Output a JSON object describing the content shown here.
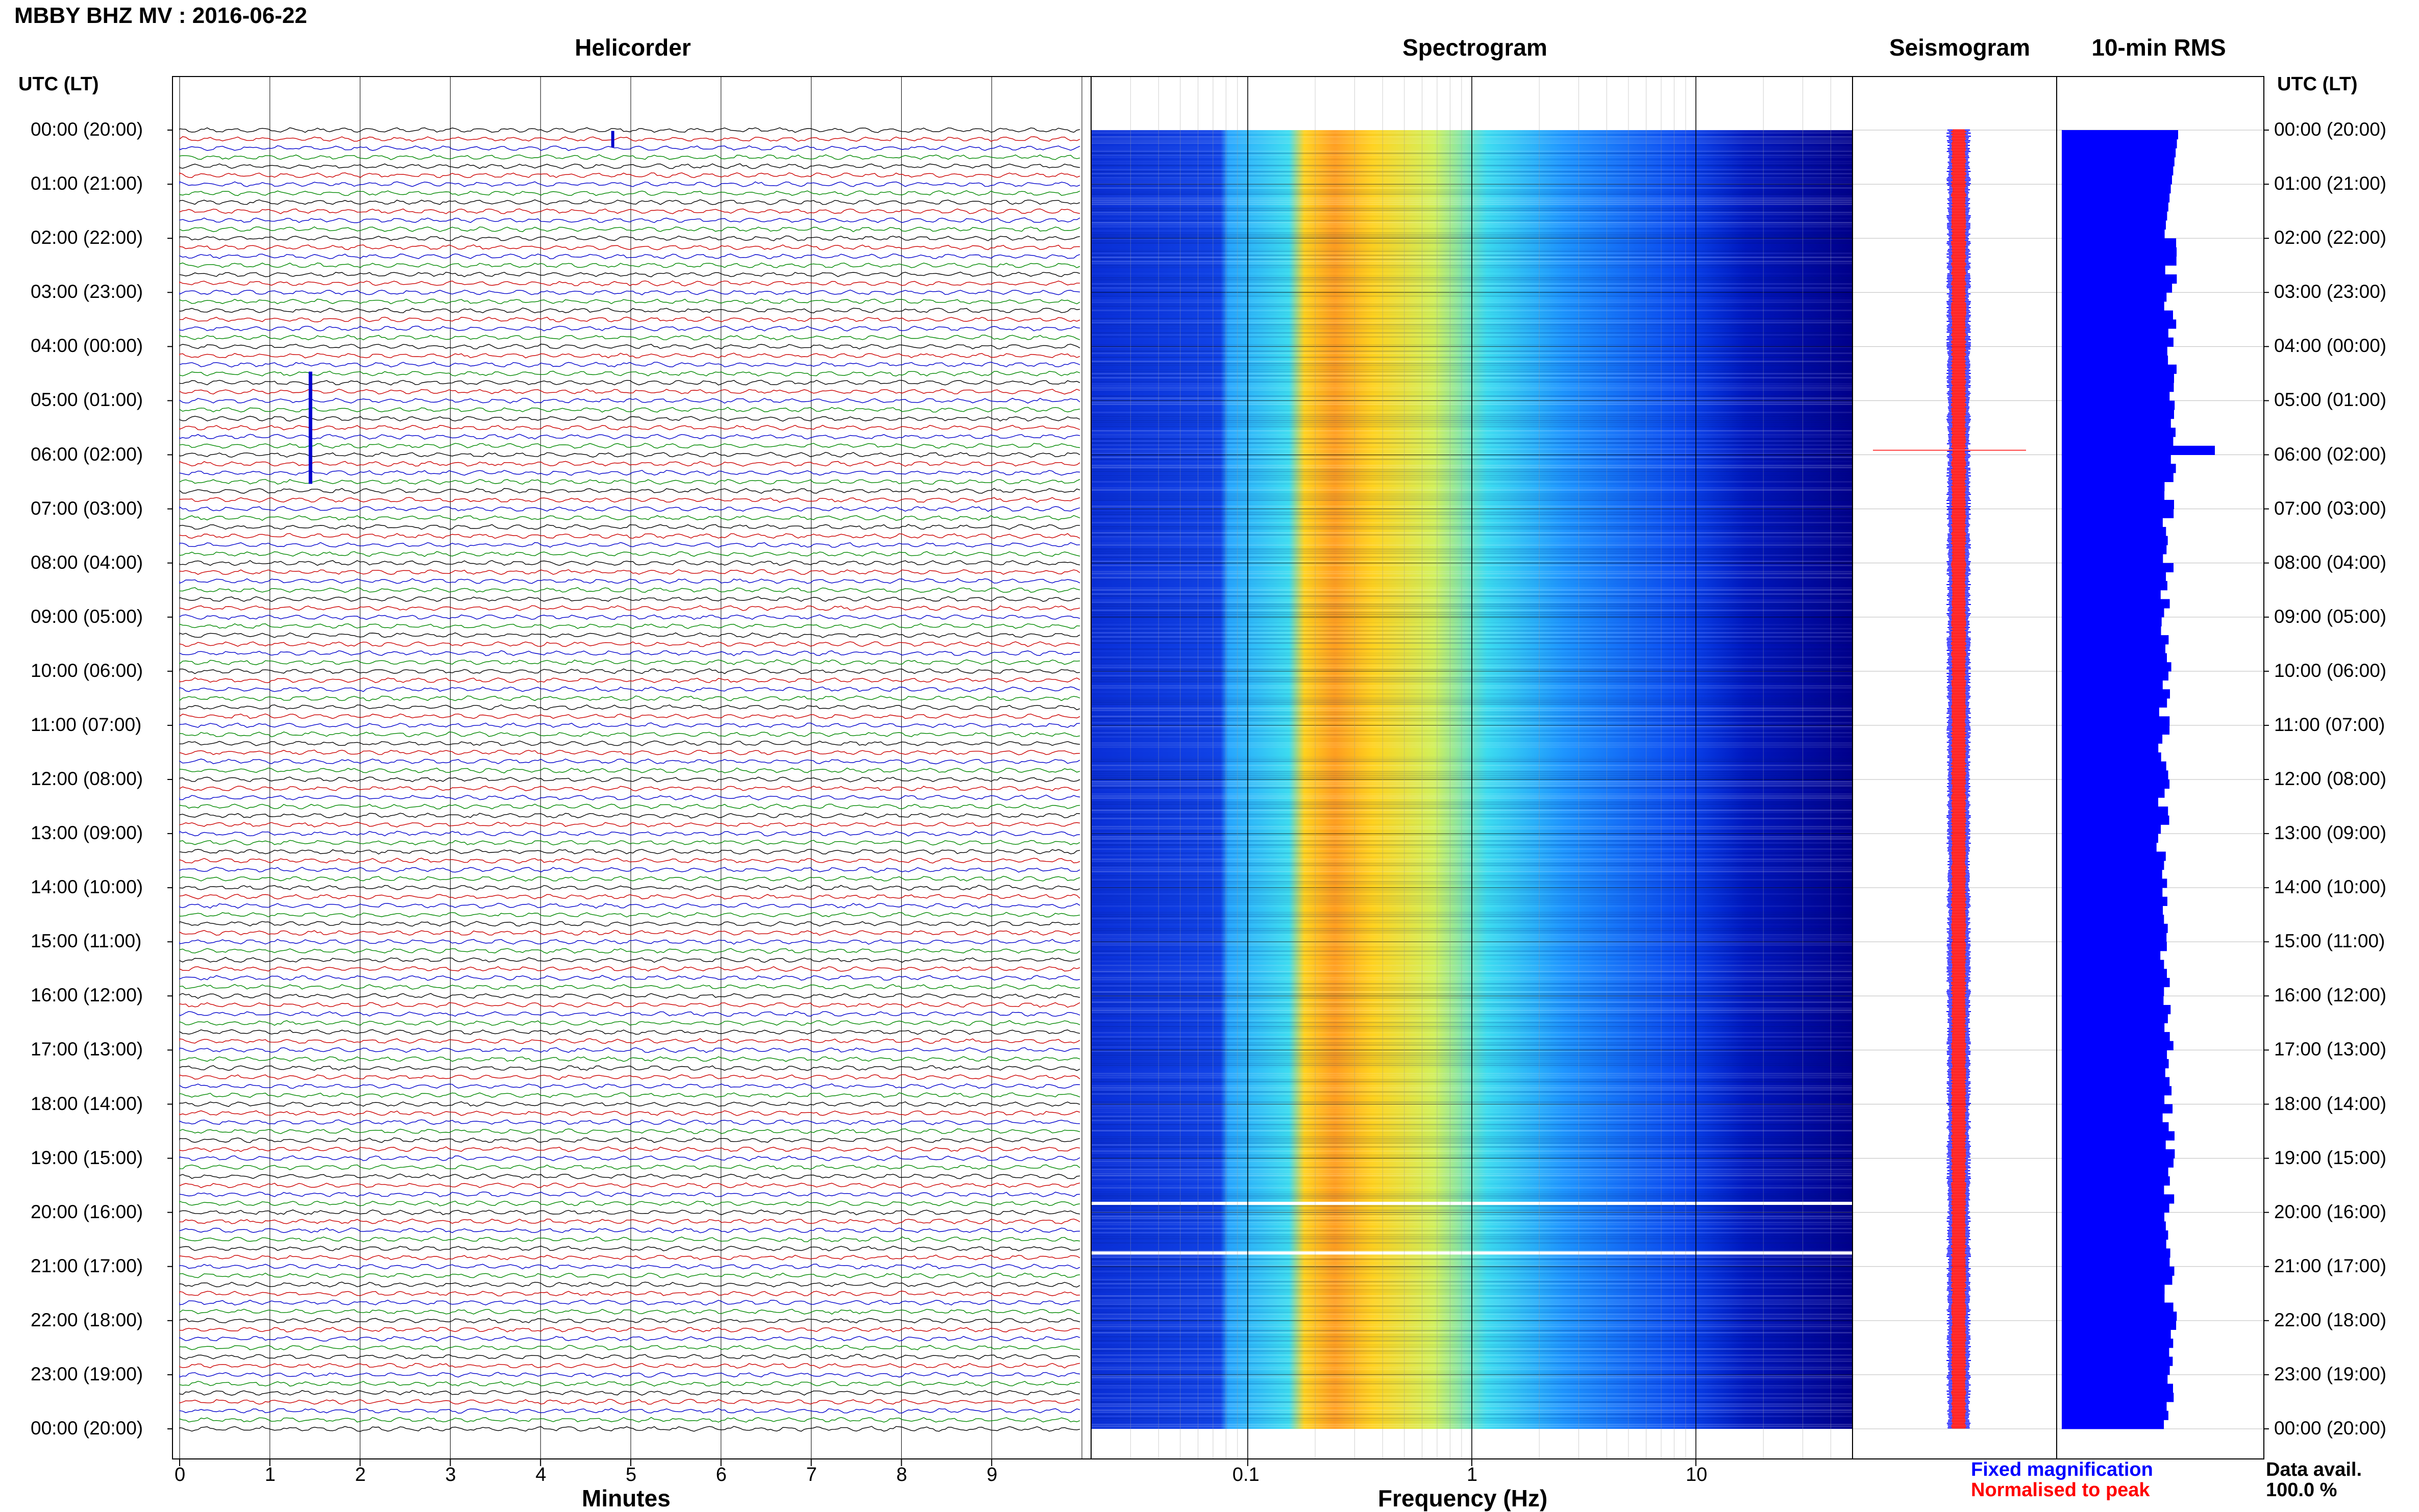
{
  "header": {
    "title": "MBBY BHZ MV : 2016-06-22",
    "utc_label": "UTC (LT)"
  },
  "panels": {
    "helicorder": "Helicorder",
    "spectrogram": "Spectrogram",
    "seismogram": "Seismogram",
    "rms": "10-min RMS"
  },
  "time_labels": [
    "00:00 (20:00)",
    "01:00 (21:00)",
    "02:00 (22:00)",
    "03:00 (23:00)",
    "04:00 (00:00)",
    "05:00 (01:00)",
    "06:00 (02:00)",
    "07:00 (03:00)",
    "08:00 (04:00)",
    "09:00 (05:00)",
    "10:00 (06:00)",
    "11:00 (07:00)",
    "12:00 (08:00)",
    "13:00 (09:00)",
    "14:00 (10:00)",
    "15:00 (11:00)",
    "16:00 (12:00)",
    "17:00 (13:00)",
    "18:00 (14:00)",
    "19:00 (15:00)",
    "20:00 (16:00)",
    "21:00 (17:00)",
    "22:00 (18:00)",
    "23:00 (19:00)",
    "00:00 (20:00)"
  ],
  "helicorder_axis": {
    "xlabel": "Minutes",
    "ticks": [
      "0",
      "1",
      "2",
      "3",
      "4",
      "5",
      "6",
      "7",
      "8",
      "9"
    ]
  },
  "spectrogram_axis": {
    "xlabel": "Frequency (Hz)",
    "ticks": [
      "0.1",
      "1",
      "10"
    ]
  },
  "legend": {
    "fixed": "Fixed magnification",
    "normalised": "Normalised to peak",
    "fixed_color": "#0000ff",
    "normalised_color": "#ff0000"
  },
  "data_avail": {
    "label": "Data avail.",
    "value": "100.0 %"
  },
  "chart_data": [
    {
      "type": "line",
      "panel": "Helicorder",
      "xlabel": "Minutes",
      "xlim": [
        0,
        10
      ],
      "ylabel": "UTC (LT)",
      "trace_colors": [
        "#000000",
        "#cc0000",
        "#0000cc",
        "#008800"
      ],
      "events": [
        {
          "time": "00:10",
          "minute": 4.8,
          "color": "#0000cc"
        },
        {
          "time": "05:30",
          "minute": 1.45,
          "color": "#0000cc"
        }
      ]
    },
    {
      "type": "heatmap",
      "panel": "Spectrogram",
      "xlabel": "Frequency (Hz)",
      "x_scale": "log",
      "xlim": [
        0.02,
        50
      ],
      "colormap": [
        "#00008b",
        "#0a3cf0",
        "#1e96ff",
        "#3cdcf0",
        "#d2f05a",
        "#ffd21e",
        "#ff8c14"
      ],
      "gaps": [
        "19:50",
        "20:45"
      ]
    },
    {
      "type": "line",
      "panel": "Seismogram",
      "series": [
        {
          "name": "Fixed magnification",
          "color": "#0000ff"
        },
        {
          "name": "Normalised to peak",
          "color": "#ff0000"
        }
      ],
      "spike": "05:55"
    },
    {
      "type": "bar",
      "panel": "10-min RMS",
      "orientation": "horizontal",
      "peak": {
        "time": "05:50",
        "relative": 1.0
      },
      "typical_relative": [
        0.55,
        0.8
      ]
    }
  ]
}
